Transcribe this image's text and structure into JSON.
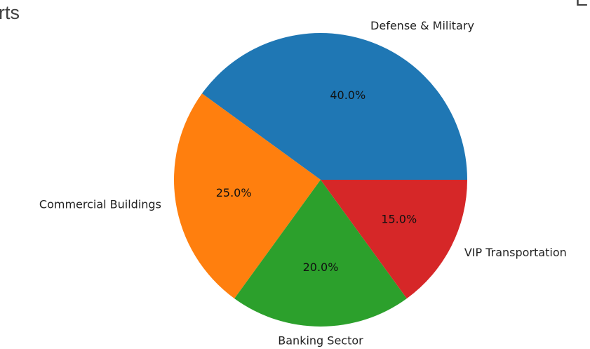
{
  "slide": {
    "left_fragment": "rts",
    "right_fragment": "E"
  },
  "chart_data": {
    "type": "pie",
    "title": "",
    "labels": [
      "Defense & Military",
      "Commercial Buildings",
      "Banking Sector",
      "VIP Transportation"
    ],
    "values": [
      40.0,
      25.0,
      20.0,
      15.0
    ],
    "pct_labels": [
      "40.0%",
      "25.0%",
      "20.0%",
      "15.0%"
    ],
    "colors": [
      "#1f77b4",
      "#ff7f0e",
      "#2ca02c",
      "#d62728"
    ],
    "start_angle_deg": 0,
    "direction": "counterclockwise",
    "legend": "none"
  }
}
